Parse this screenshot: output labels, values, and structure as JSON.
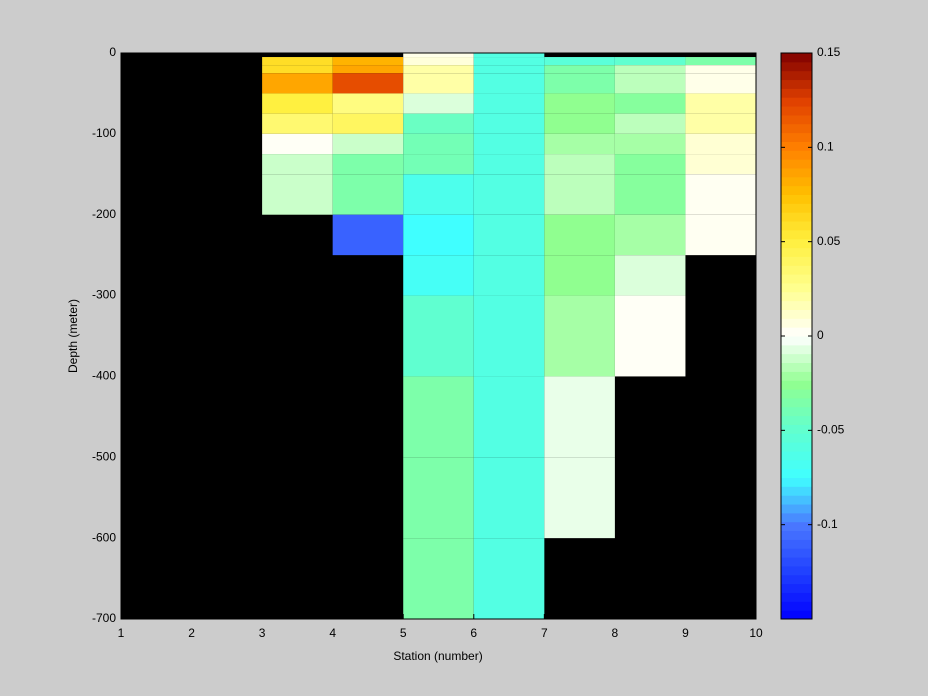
{
  "chart_data": {
    "type": "pcolor",
    "xlabel": "Station (number)",
    "ylabel": "Depth (meter)",
    "x": [
      1,
      2,
      3,
      4,
      5,
      6,
      7,
      8,
      9,
      10
    ],
    "y": [
      0,
      -5,
      -15,
      -25,
      -50,
      -75,
      -100,
      -125,
      -150,
      -200,
      -250,
      -300,
      -350,
      -400,
      -500,
      -600,
      -700
    ],
    "values": [
      [
        null,
        null,
        null,
        null,
        0.005,
        -0.06,
        null,
        null,
        null
      ],
      [
        null,
        null,
        0.06,
        0.08,
        0.008,
        -0.06,
        -0.055,
        -0.05,
        -0.035
      ],
      [
        null,
        null,
        0.06,
        0.085,
        0.02,
        -0.06,
        -0.035,
        -0.015,
        0.005
      ],
      [
        null,
        null,
        0.085,
        0.12,
        0.02,
        -0.06,
        -0.035,
        -0.015,
        0.005
      ],
      [
        null,
        null,
        0.05,
        0.03,
        -0.008,
        -0.06,
        -0.025,
        -0.03,
        0.02
      ],
      [
        null,
        null,
        0.035,
        0.04,
        -0.045,
        -0.06,
        -0.025,
        -0.015,
        0.02
      ],
      [
        null,
        null,
        0.002,
        -0.012,
        -0.04,
        -0.06,
        -0.02,
        -0.02,
        0.01
      ],
      [
        null,
        null,
        -0.012,
        -0.035,
        -0.04,
        -0.06,
        -0.015,
        -0.03,
        0.01
      ],
      [
        null,
        null,
        -0.012,
        -0.035,
        -0.065,
        -0.06,
        -0.015,
        -0.03,
        0.003
      ],
      [
        null,
        null,
        null,
        -0.11,
        -0.075,
        -0.06,
        -0.025,
        -0.02,
        0.003
      ],
      [
        null,
        null,
        null,
        null,
        -0.07,
        -0.06,
        -0.025,
        -0.008,
        null
      ],
      [
        null,
        null,
        null,
        null,
        -0.05,
        -0.06,
        -0.02,
        0.002,
        null
      ],
      [
        null,
        null,
        null,
        null,
        -0.05,
        -0.06,
        -0.02,
        0.002,
        null
      ],
      [
        null,
        null,
        null,
        null,
        -0.035,
        -0.06,
        -0.005,
        null,
        null
      ],
      [
        null,
        null,
        null,
        null,
        -0.035,
        -0.06,
        -0.005,
        null,
        null
      ],
      [
        null,
        null,
        null,
        null,
        -0.035,
        -0.06,
        null,
        null,
        null
      ]
    ],
    "xlim": [
      1,
      10
    ],
    "ylim": [
      -700,
      0
    ],
    "xticks": [
      1,
      2,
      3,
      4,
      5,
      6,
      7,
      8,
      9,
      10
    ],
    "yticks": [
      0,
      -100,
      -200,
      -300,
      -400,
      -500,
      -600,
      -700
    ],
    "clim": [
      -0.15,
      0.15
    ],
    "cticks": [
      0.15,
      0.1,
      0.05,
      0,
      -0.05,
      -0.1
    ],
    "colormap": [
      "#0000ff",
      "#2040ff",
      "#4a78ff",
      "#40ffff",
      "#60ffd0",
      "#90ff90",
      "#ffffff",
      "#ffff90",
      "#fff040",
      "#ffc000",
      "#ff8000",
      "#e04000",
      "#800000"
    ],
    "background": "#000000"
  }
}
